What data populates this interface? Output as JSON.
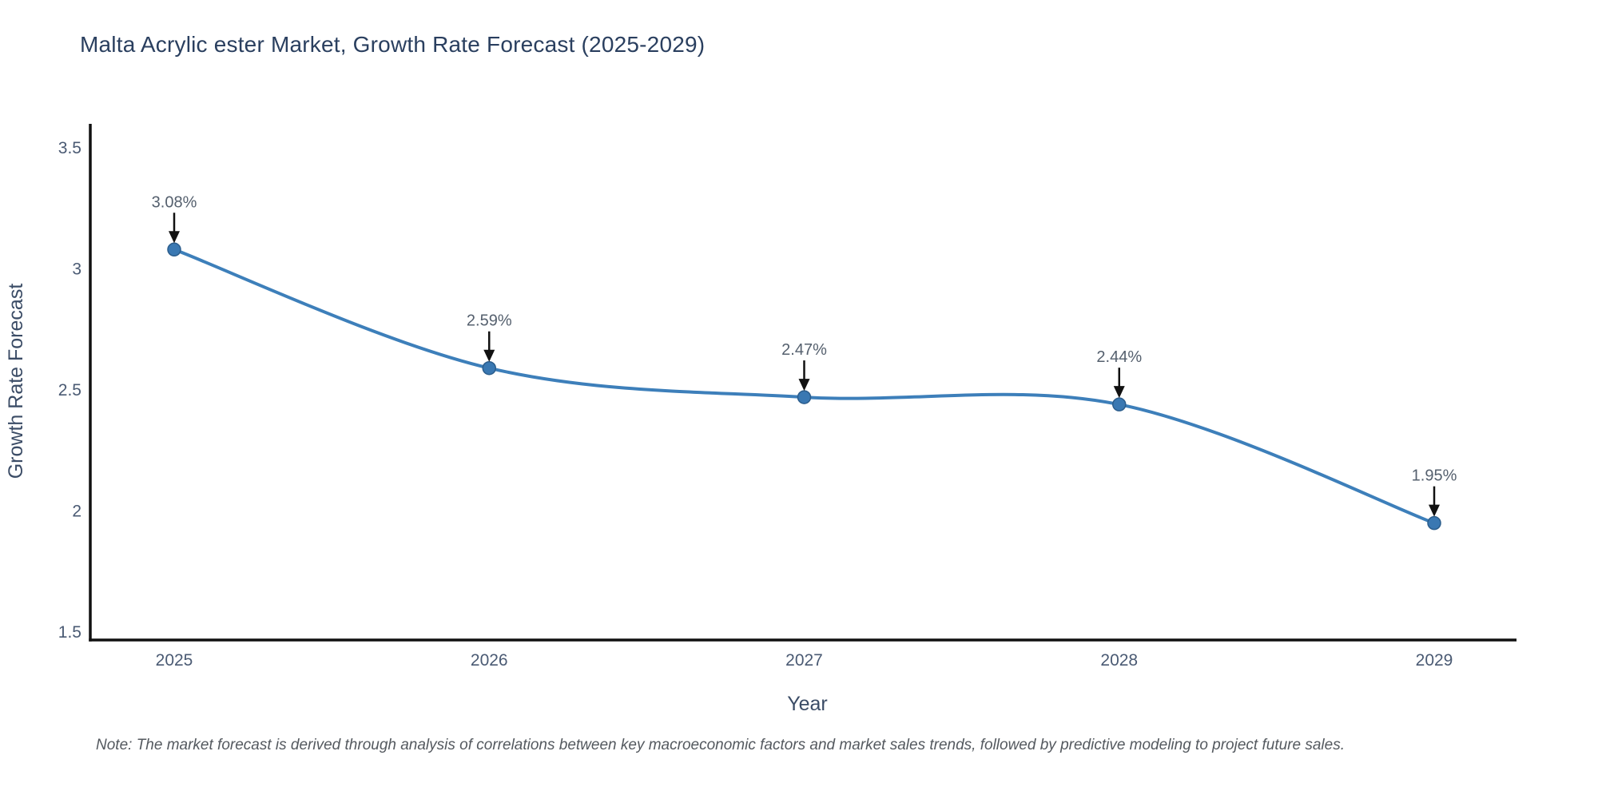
{
  "title": "Malta Acrylic ester Market, Growth Rate Forecast (2025-2029)",
  "note": "Note: The market forecast is derived through analysis of correlations between key macroeconomic factors and market sales trends, followed by predictive modeling to project future sales.",
  "chart_data": {
    "type": "line",
    "line_shape": "spline",
    "title": "Malta Acrylic ester Market, Growth Rate Forecast (2025-2029)",
    "xlabel": "Year",
    "ylabel": "Growth Rate Forecast",
    "categories": [
      "2025",
      "2026",
      "2027",
      "2028",
      "2029"
    ],
    "x": [
      2025,
      2026,
      2027,
      2028,
      2029
    ],
    "values": [
      3.08,
      2.59,
      2.47,
      2.44,
      1.95
    ],
    "point_labels": [
      "3.08%",
      "2.59%",
      "2.47%",
      "2.44%",
      "1.95%"
    ],
    "yticks": [
      3.5,
      3,
      2.5,
      2,
      1.5
    ],
    "ytick_labels": [
      "3.5",
      "3",
      "2.5",
      "2",
      "1.5"
    ],
    "ylim": [
      1.46,
      3.6
    ],
    "grid": false,
    "legend_position": "none",
    "annotations_have_arrows": true,
    "colors": {
      "line": "#3d7fba",
      "marker_fill": "#3a78b2",
      "marker_edge": "#2b5d8c",
      "axis_line": "#111111",
      "title_text": "#2a3f5f",
      "tick_text": "#4a5a73",
      "axis_title_text": "#3b4c66",
      "annotation_text": "#55606e",
      "arrow": "#111111",
      "note_text": "#54595f"
    }
  }
}
